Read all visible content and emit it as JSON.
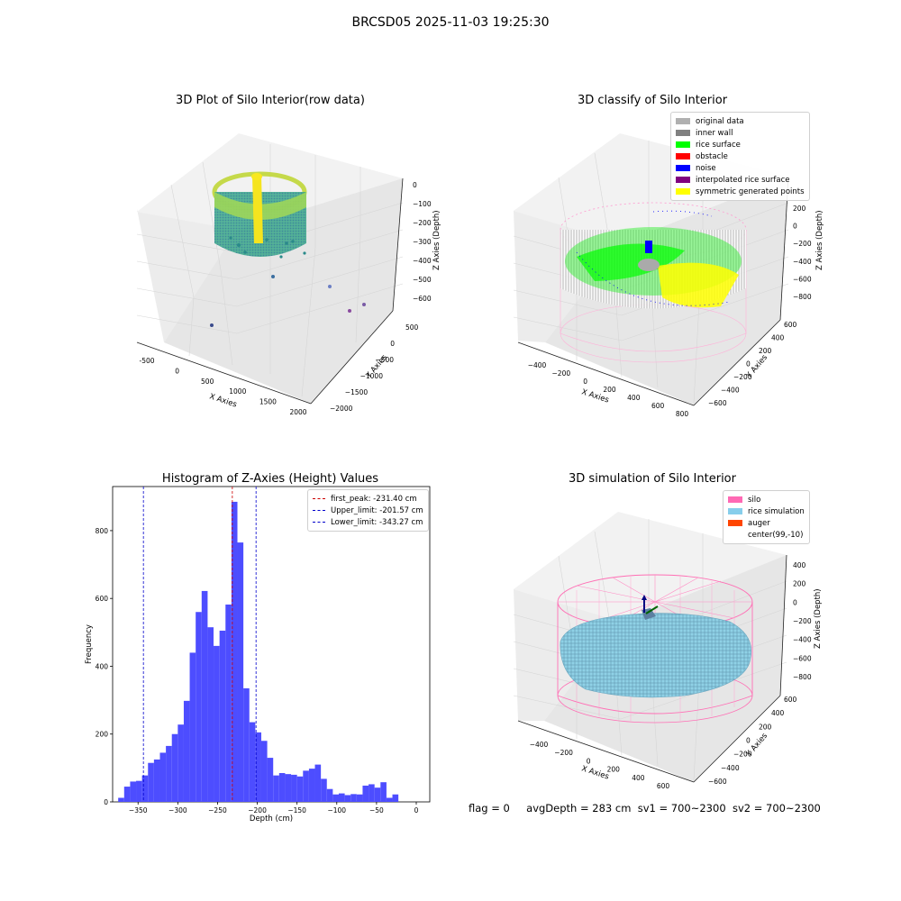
{
  "figure": {
    "suptitle": "BRCSD05 2025-11-03 19:25:30",
    "status": {
      "flag": "flag = 0",
      "avg_depth": "avgDepth = 283 cm",
      "sv1": "sv1 = 700~2300",
      "sv2": "sv2 = 700~2300"
    }
  },
  "chart_data": [
    {
      "type": "scatter",
      "subtype": "3d",
      "title": "3D Plot of Silo Interior(row data)",
      "xlabel": "X Axies",
      "ylabel": "Y Axies",
      "zlabel": "Z Axies (Depth)",
      "x_ticks": [
        "-500",
        "0",
        "500",
        "1000",
        "1500",
        "2000"
      ],
      "y_ticks": [
        "500",
        "0",
        "−500",
        "−1000",
        "−1500",
        "−2000"
      ],
      "z_ticks": [
        "0",
        "−100",
        "−200",
        "−300",
        "−400",
        "−500",
        "−600"
      ],
      "colormap": "viridis",
      "grid": true
    },
    {
      "type": "scatter",
      "subtype": "3d",
      "title": "3D classify of Silo Interior",
      "xlabel": "X Axies",
      "ylabel": "Y Axies",
      "zlabel": "Z Axies (Depth)",
      "x_ticks": [
        "−400",
        "−200",
        "0",
        "200",
        "400",
        "600",
        "800"
      ],
      "y_ticks": [
        "600",
        "400",
        "200",
        "0",
        "−200",
        "−400",
        "−600"
      ],
      "z_ticks": [
        "200",
        "0",
        "−200",
        "−400",
        "−600",
        "−800"
      ],
      "legend_position": "top-right",
      "legend": [
        {
          "label": "original data",
          "color": "#b0b0b0"
        },
        {
          "label": "inner wall",
          "color": "#808080"
        },
        {
          "label": "rice surface",
          "color": "#00ff00"
        },
        {
          "label": "obstacle",
          "color": "#ff0000"
        },
        {
          "label": "noise",
          "color": "#0000ff"
        },
        {
          "label": "interpolated rice surface",
          "color": "#800080"
        },
        {
          "label": "symmetric generated points",
          "color": "#ffff00"
        }
      ],
      "grid": true
    },
    {
      "type": "bar",
      "subtype": "histogram",
      "title": "Histogram of Z-Axies (Height) Values",
      "xlabel": "Depth (cm)",
      "ylabel": "Frequency",
      "xlim": [
        -382,
        17
      ],
      "ylim": [
        0,
        930
      ],
      "x_ticks": [
        -350,
        -300,
        -250,
        -200,
        -150,
        -100,
        -50,
        0
      ],
      "x_tick_labels": [
        "−350",
        "−300",
        "−250",
        "−200",
        "−150",
        "−100",
        "−50",
        "0"
      ],
      "y_ticks": [
        0,
        200,
        400,
        600,
        800
      ],
      "bin_start": -375,
      "bin_width": 7.5,
      "bar_color": "#4d4dff",
      "values": [
        12,
        45,
        60,
        62,
        78,
        115,
        125,
        145,
        165,
        200,
        228,
        298,
        440,
        560,
        622,
        515,
        460,
        505,
        582,
        885,
        765,
        335,
        235,
        205,
        180,
        130,
        78,
        85,
        82,
        80,
        75,
        92,
        98,
        110,
        68,
        38,
        22,
        25,
        20,
        23,
        22,
        48,
        52,
        42,
        58,
        12,
        22
      ],
      "vlines": [
        {
          "label": "first_peak: -231.40 cm",
          "x": -231.4,
          "color": "#cc0000"
        },
        {
          "label": "Upper_limit: -201.57 cm",
          "x": -201.57,
          "color": "#0000cc"
        },
        {
          "label": "Lower_limit: -343.27 cm",
          "x": -343.27,
          "color": "#0000cc"
        }
      ],
      "legend_position": "top-right"
    },
    {
      "type": "scatter",
      "subtype": "3d-surface",
      "title": "3D simulation of Silo Interior",
      "xlabel": "X Axies",
      "ylabel": "Y Axies",
      "zlabel": "Z Axies (Depth)",
      "x_ticks": [
        "−400",
        "−200",
        "0",
        "200",
        "400",
        "600"
      ],
      "y_ticks": [
        "600",
        "400",
        "200",
        "0",
        "−200",
        "−400",
        "−600"
      ],
      "z_ticks": [
        "400",
        "200",
        "0",
        "−200",
        "−400",
        "−600",
        "−800"
      ],
      "legend_position": "top-right",
      "legend": [
        {
          "label": "silo",
          "color": "#ff69b4"
        },
        {
          "label": "rice simulation",
          "color": "#87ceeb"
        },
        {
          "label": "auger",
          "color": "#ff4500"
        },
        {
          "label": "center(99,-10)",
          "color": "#ffffff"
        }
      ],
      "grid": true
    }
  ]
}
